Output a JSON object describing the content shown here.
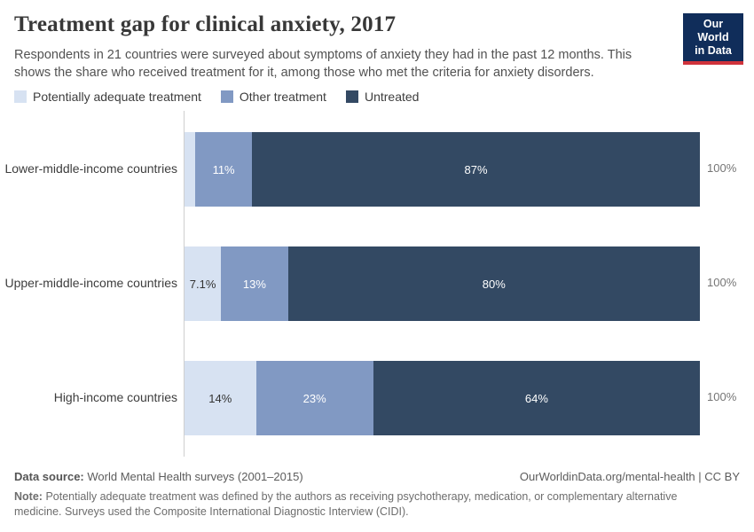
{
  "header": {
    "title": "Treatment gap for clinical anxiety, 2017",
    "subtitle": "Respondents in 21 countries were surveyed about symptoms of anxiety they had in the past 12 months. This shows the share who received treatment for it, among those who met the criteria for anxiety disorders.",
    "logo": {
      "line1": "Our World",
      "line2": "in Data",
      "bg_color": "#102d5a",
      "accent_color": "#d0333b"
    }
  },
  "legend": [
    {
      "label": "Potentially adequate treatment",
      "color": "#d7e2f2"
    },
    {
      "label": "Other treatment",
      "color": "#8199c3"
    },
    {
      "label": "Untreated",
      "color": "#334963"
    }
  ],
  "chart_data": {
    "type": "bar",
    "orientation": "horizontal",
    "stacked": true,
    "xlim": [
      0,
      100
    ],
    "grid": false,
    "categories": [
      "Lower-middle-income countries",
      "Upper-middle-income countries",
      "High-income countries"
    ],
    "series": [
      {
        "name": "Potentially adequate treatment",
        "color": "#d7e2f2",
        "label_color": "#333333",
        "values": [
          2.1,
          7.1,
          14
        ],
        "labels": [
          "",
          "7.1%",
          "14%"
        ]
      },
      {
        "name": "Other treatment",
        "color": "#8199c3",
        "label_color": "#ffffff",
        "values": [
          11,
          13,
          23
        ],
        "labels": [
          "11%",
          "13%",
          "23%"
        ]
      },
      {
        "name": "Untreated",
        "color": "#334963",
        "label_color": "#ffffff",
        "values": [
          87,
          80,
          64
        ],
        "labels": [
          "87%",
          "80%",
          "64%"
        ]
      }
    ],
    "totals": [
      "100%",
      "100%",
      "100%"
    ]
  },
  "footer": {
    "data_source_label": "Data source:",
    "data_source": "World Mental Health surveys (2001–2015)",
    "link": "OurWorldinData.org/mental-health | CC BY",
    "note_label": "Note:",
    "note": "Potentially adequate treatment was defined by the authors as receiving psychotherapy, medication, or complementary alternative medicine. Surveys used the Composite International Diagnostic Interview (CIDI)."
  }
}
